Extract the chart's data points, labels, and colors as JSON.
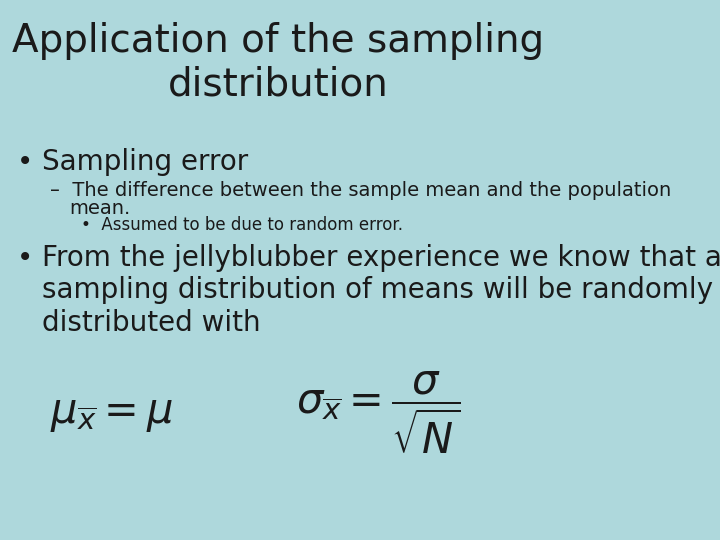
{
  "background_color": "#aed8dc",
  "title_line1": "Application of the sampling",
  "title_line2": "distribution",
  "title_fontsize": 28,
  "title_color": "#1a1a1a",
  "bullet1_text": "Sampling error",
  "bullet1_fontsize": 20,
  "sub1_line1": "The difference between the sample mean and the population",
  "sub1_line2": "mean.",
  "sub1_fontsize": 14,
  "subsub1_text": "Assumed to be due to random error.",
  "subsub1_fontsize": 12,
  "bullet2_line1": "From the jellyblubber experience we know that a",
  "bullet2_line2": "sampling distribution of means will be randomly",
  "bullet2_line3": "distributed with",
  "bullet2_fontsize": 20,
  "formula1": "$\\mu_{\\overline{x}} = \\mu$",
  "formula2": "$\\sigma_{\\overline{x}} = \\dfrac{\\sigma}{\\sqrt{N}}$",
  "formula_fontsize": 30,
  "text_color": "#1a1a1a"
}
